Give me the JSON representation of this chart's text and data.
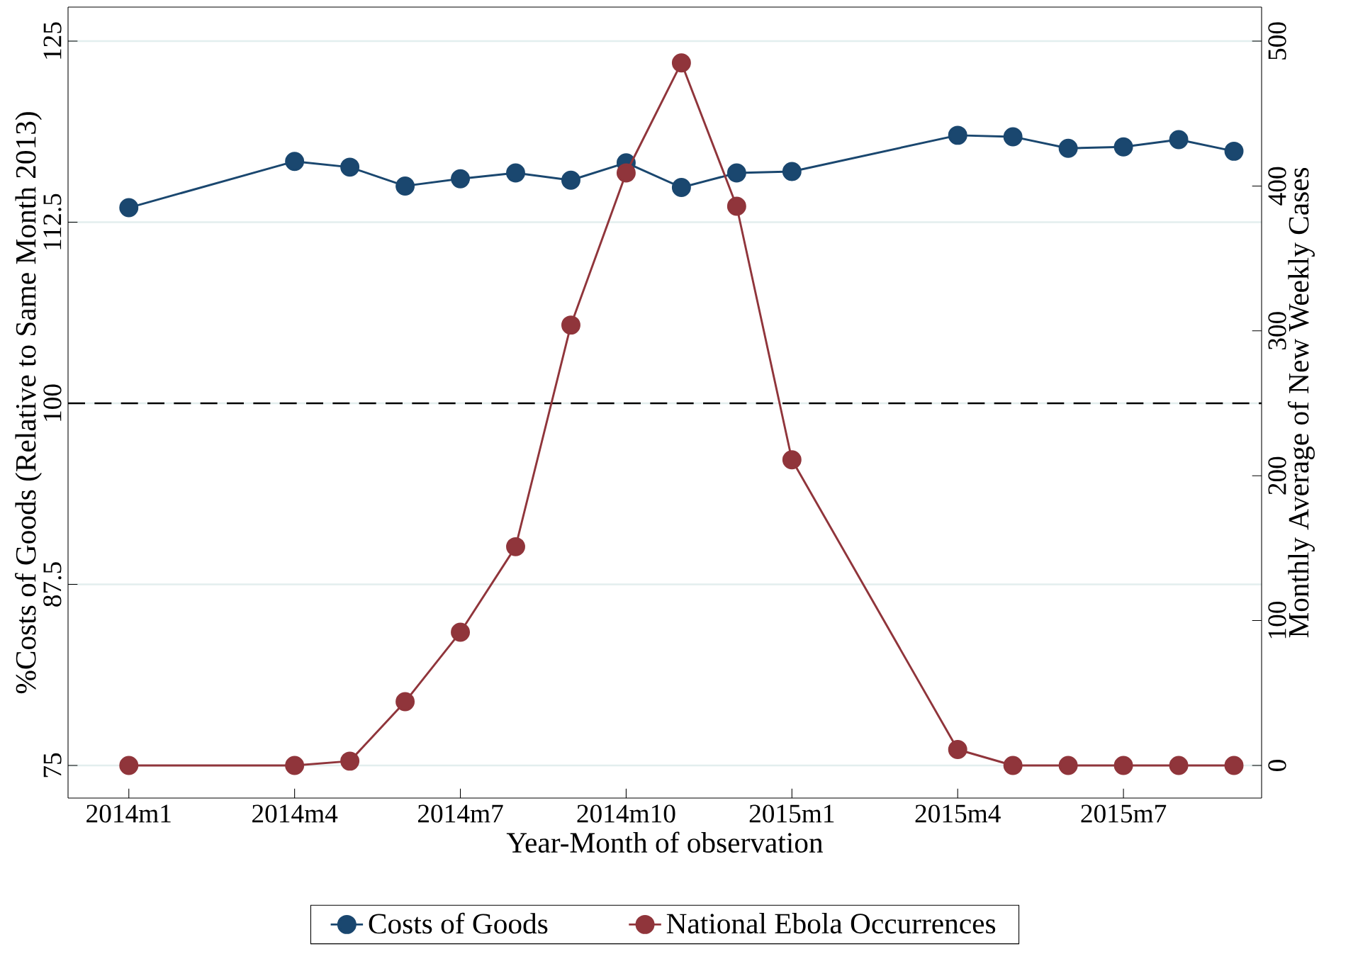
{
  "chart_data": {
    "type": "line",
    "xlabel": "Year-Month of observation",
    "ylabel": "%Costs of Goods (Relative to Same Month 2013)",
    "y2label": "Monthly Average of New Weekly Cases",
    "categories": [
      "2014m1",
      null,
      null,
      "2014m4",
      null,
      null,
      "2014m7",
      null,
      null,
      "2014m10",
      null,
      null,
      "2015m1",
      null,
      null,
      "2015m4",
      null,
      null,
      "2015m7",
      null,
      null
    ],
    "series": [
      {
        "name": "Costs of Goods",
        "color": "#1a476f",
        "values": [
          113.5,
          null,
          null,
          116.7,
          116.3,
          115.0,
          115.5,
          115.9,
          115.4,
          116.6,
          114.9,
          115.9,
          116.0,
          null,
          null,
          118.5,
          118.4,
          117.6,
          117.7,
          118.2,
          117.4
        ]
      },
      {
        "name": "National Ebola Occurrences",
        "color": "#90353b",
        "axis": "y2",
        "values": [
          0,
          null,
          null,
          0,
          3,
          44,
          92,
          151,
          304,
          409,
          485,
          386,
          211,
          null,
          null,
          11,
          0,
          0,
          0,
          0,
          0
        ]
      }
    ],
    "ylim": [
      72.75,
      127.35
    ],
    "yticks": [
      75,
      87.5,
      100,
      112.5,
      125
    ],
    "y2lim": [
      -22.5,
      523.5
    ],
    "y2ticks": [
      0,
      100,
      200,
      300,
      400,
      500
    ],
    "ref_lines": [
      {
        "axis": "y",
        "value": 100,
        "color": "#000000",
        "line_style": "dashed"
      }
    ],
    "grid": "y",
    "legend": "bottom",
    "marker": "circle",
    "line_style": "solid"
  }
}
